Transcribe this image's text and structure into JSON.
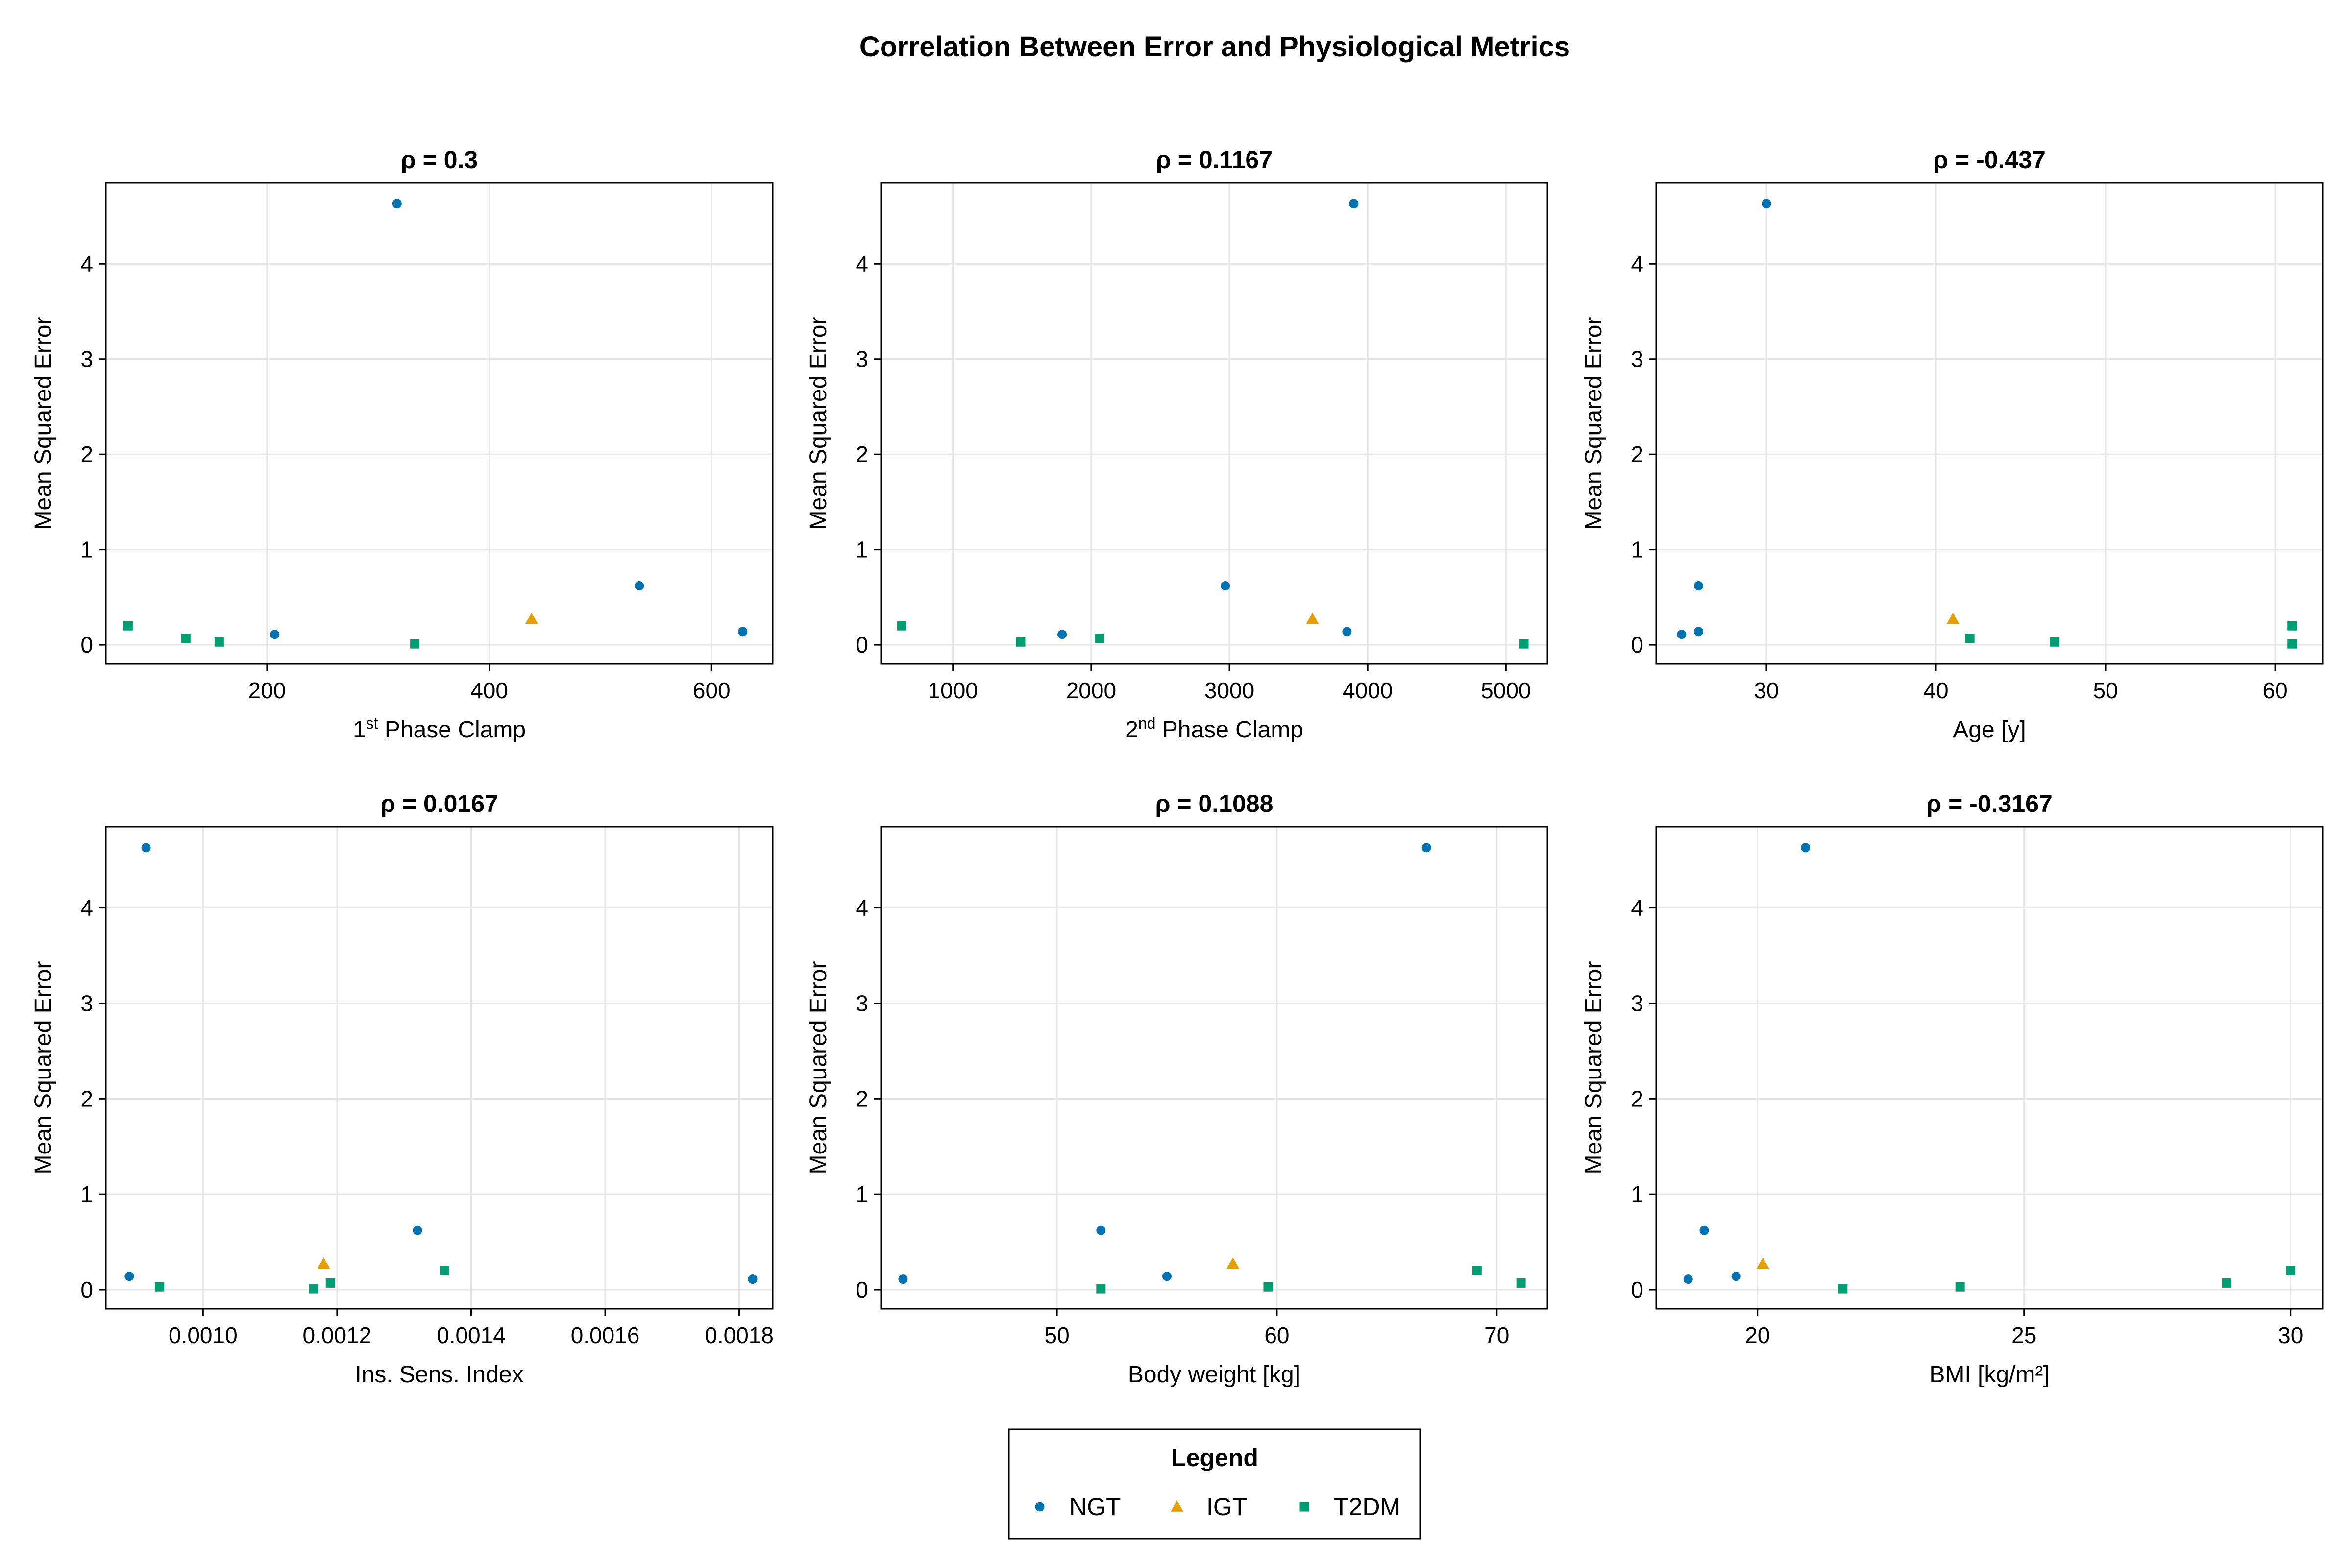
{
  "figure": {
    "title": "Correlation Between Error and Physiological Metrics"
  },
  "colors": {
    "NGT": "#0072b2",
    "IGT": "#e69f00",
    "T2DM": "#009e73",
    "grid": "#e6e6e6",
    "axis": "#000000"
  },
  "legend": {
    "title": "Legend",
    "placement": "bottom-center",
    "entries": [
      {
        "name": "NGT",
        "marker": "circle"
      },
      {
        "name": "IGT",
        "marker": "triangle"
      },
      {
        "name": "T2DM",
        "marker": "square"
      }
    ]
  },
  "chart_data": [
    {
      "type": "scatter",
      "title": "ρ = 0.3",
      "xlabel_parts": [
        {
          "t": "1"
        },
        {
          "t": "st",
          "sup": true
        },
        {
          "t": " Phase Clamp"
        }
      ],
      "ylabel": "Mean Squared Error",
      "xlim": [
        55,
        655
      ],
      "ylim": [
        -0.2,
        4.85
      ],
      "xticks": [
        200,
        400,
        600
      ],
      "xtick_labels": [
        "200",
        "400",
        "600"
      ],
      "yticks": [
        0,
        1,
        2,
        3,
        4
      ],
      "ytick_labels": [
        "0",
        "1",
        "2",
        "3",
        "4"
      ],
      "grid": true,
      "series": [
        {
          "name": "NGT",
          "points": [
            [
              317,
              4.63
            ],
            [
              207,
              0.11
            ],
            [
              535,
              0.62
            ],
            [
              628,
              0.14
            ]
          ]
        },
        {
          "name": "IGT",
          "points": [
            [
              438,
              0.27
            ]
          ]
        },
        {
          "name": "T2DM",
          "points": [
            [
              75,
              0.2
            ],
            [
              127,
              0.07
            ],
            [
              157,
              0.03
            ],
            [
              333,
              0.01
            ]
          ]
        }
      ]
    },
    {
      "type": "scatter",
      "title": "ρ = 0.1167",
      "xlabel_parts": [
        {
          "t": "2"
        },
        {
          "t": "nd",
          "sup": true
        },
        {
          "t": " Phase Clamp"
        }
      ],
      "ylabel": "Mean Squared Error",
      "xlim": [
        480,
        5300
      ],
      "ylim": [
        -0.2,
        4.85
      ],
      "xticks": [
        1000,
        2000,
        3000,
        4000,
        5000
      ],
      "xtick_labels": [
        "1000",
        "2000",
        "3000",
        "4000",
        "5000"
      ],
      "yticks": [
        0,
        1,
        2,
        3,
        4
      ],
      "ytick_labels": [
        "0",
        "1",
        "2",
        "3",
        "4"
      ],
      "grid": true,
      "series": [
        {
          "name": "NGT",
          "points": [
            [
              3900,
              4.63
            ],
            [
              1790,
              0.11
            ],
            [
              2970,
              0.62
            ],
            [
              3850,
              0.14
            ]
          ]
        },
        {
          "name": "IGT",
          "points": [
            [
              3600,
              0.27
            ]
          ]
        },
        {
          "name": "T2DM",
          "points": [
            [
              630,
              0.2
            ],
            [
              2060,
              0.07
            ],
            [
              1490,
              0.03
            ],
            [
              5130,
              0.01
            ]
          ]
        }
      ]
    },
    {
      "type": "scatter",
      "title": "ρ = -0.437",
      "xlabel": "Age [y]",
      "ylabel": "Mean Squared Error",
      "xlim": [
        23.5,
        62.8
      ],
      "ylim": [
        -0.2,
        4.85
      ],
      "xticks": [
        30,
        40,
        50,
        60
      ],
      "xtick_labels": [
        "30",
        "40",
        "50",
        "60"
      ],
      "yticks": [
        0,
        1,
        2,
        3,
        4
      ],
      "ytick_labels": [
        "0",
        "1",
        "2",
        "3",
        "4"
      ],
      "grid": true,
      "series": [
        {
          "name": "NGT",
          "points": [
            [
              30,
              4.63
            ],
            [
              25,
              0.11
            ],
            [
              26,
              0.62
            ],
            [
              26,
              0.14
            ]
          ]
        },
        {
          "name": "IGT",
          "points": [
            [
              41,
              0.27
            ]
          ]
        },
        {
          "name": "T2DM",
          "points": [
            [
              61,
              0.2
            ],
            [
              42,
              0.07
            ],
            [
              47,
              0.03
            ],
            [
              61,
              0.01
            ]
          ]
        }
      ]
    },
    {
      "type": "scatter",
      "title": "ρ = 0.0167",
      "xlabel": "Ins. Sens. Index",
      "ylabel": "Mean Squared Error",
      "xlim": [
        0.000855,
        0.00185
      ],
      "ylim": [
        -0.2,
        4.85
      ],
      "xticks": [
        0.001,
        0.0012,
        0.0014,
        0.0016,
        0.0018
      ],
      "xtick_labels": [
        "0.0010",
        "0.0012",
        "0.0014",
        "0.0016",
        "0.0018"
      ],
      "yticks": [
        0,
        1,
        2,
        3,
        4
      ],
      "ytick_labels": [
        "0",
        "1",
        "2",
        "3",
        "4"
      ],
      "grid": true,
      "series": [
        {
          "name": "NGT",
          "points": [
            [
              0.000915,
              4.63
            ],
            [
              0.00089,
              0.14
            ],
            [
              0.00132,
              0.62
            ],
            [
              0.00182,
              0.11
            ]
          ]
        },
        {
          "name": "IGT",
          "points": [
            [
              0.00118,
              0.27
            ]
          ]
        },
        {
          "name": "T2DM",
          "points": [
            [
              0.000935,
              0.03
            ],
            [
              0.001165,
              0.01
            ],
            [
              0.00119,
              0.07
            ],
            [
              0.00136,
              0.2
            ]
          ]
        }
      ]
    },
    {
      "type": "scatter",
      "title": "ρ = 0.1088",
      "xlabel": "Body weight [kg]",
      "ylabel": "Mean Squared Error",
      "xlim": [
        42.0,
        72.3
      ],
      "ylim": [
        -0.2,
        4.85
      ],
      "xticks": [
        50,
        60,
        70
      ],
      "xtick_labels": [
        "50",
        "60",
        "70"
      ],
      "yticks": [
        0,
        1,
        2,
        3,
        4
      ],
      "ytick_labels": [
        "0",
        "1",
        "2",
        "3",
        "4"
      ],
      "grid": true,
      "series": [
        {
          "name": "NGT",
          "points": [
            [
              66.8,
              4.63
            ],
            [
              43.0,
              0.11
            ],
            [
              52.0,
              0.62
            ],
            [
              55.0,
              0.14
            ]
          ]
        },
        {
          "name": "IGT",
          "points": [
            [
              58.0,
              0.27
            ]
          ]
        },
        {
          "name": "T2DM",
          "points": [
            [
              52.0,
              0.01
            ],
            [
              59.6,
              0.03
            ],
            [
              69.1,
              0.2
            ],
            [
              71.1,
              0.07
            ]
          ]
        }
      ]
    },
    {
      "type": "scatter",
      "title": "ρ = -0.3167",
      "xlabel": "BMI [kg/m²]",
      "ylabel": "Mean Squared Error",
      "xlim": [
        18.1,
        30.6
      ],
      "ylim": [
        -0.2,
        4.85
      ],
      "xticks": [
        20,
        25,
        30
      ],
      "xtick_labels": [
        "20",
        "25",
        "30"
      ],
      "yticks": [
        0,
        1,
        2,
        3,
        4
      ],
      "ytick_labels": [
        "0",
        "1",
        "2",
        "3",
        "4"
      ],
      "grid": true,
      "series": [
        {
          "name": "NGT",
          "points": [
            [
              20.9,
              4.63
            ],
            [
              18.7,
              0.11
            ],
            [
              19.0,
              0.62
            ],
            [
              19.6,
              0.14
            ]
          ]
        },
        {
          "name": "IGT",
          "points": [
            [
              20.1,
              0.27
            ]
          ]
        },
        {
          "name": "T2DM",
          "points": [
            [
              21.6,
              0.01
            ],
            [
              23.8,
              0.03
            ],
            [
              28.8,
              0.07
            ],
            [
              30.0,
              0.2
            ]
          ]
        }
      ]
    }
  ]
}
